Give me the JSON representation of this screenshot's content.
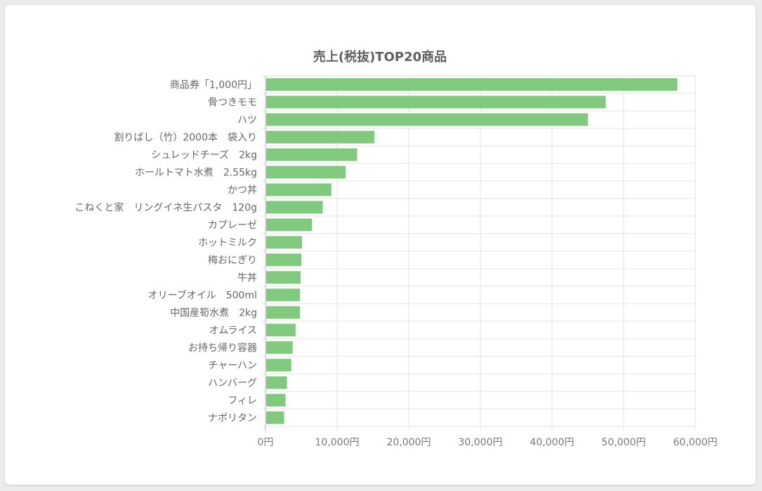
{
  "chart_data": {
    "type": "bar",
    "orientation": "horizontal",
    "title": "売上(税抜)TOP20商品",
    "xlabel": "",
    "ylabel": "",
    "xlim": [
      0,
      60000
    ],
    "x_ticks": [
      "0円",
      "10,000円",
      "20,000円",
      "30,000円",
      "40,000円",
      "50,000円",
      "60,000円"
    ],
    "x_tick_values": [
      0,
      10000,
      20000,
      30000,
      40000,
      50000,
      60000
    ],
    "grid": true,
    "bar_color": "#80c97e",
    "categories": [
      "商品券「1,000円」",
      "骨つきモモ",
      "ハツ",
      "割りばし（竹）2000本　袋入り",
      "シュレッドチーズ　2kg",
      "ホールトマト水煮　2.55kg",
      "かつ丼",
      "こねくと家　リングイネ生パスタ　120g",
      "カプレーゼ",
      "ホットミルク",
      "梅おにぎり",
      "牛丼",
      "オリーブオイル　500ml",
      "中国産筍水煮　2kg",
      "オムライス",
      "お持ち帰り容器",
      "チャーハン",
      "ハンバーグ",
      "フィレ",
      "ナポリタン"
    ],
    "values": [
      57500,
      47500,
      45000,
      15200,
      12800,
      11200,
      9200,
      8000,
      6500,
      5100,
      5000,
      4900,
      4800,
      4800,
      4200,
      3800,
      3600,
      3000,
      2800,
      2600
    ]
  }
}
